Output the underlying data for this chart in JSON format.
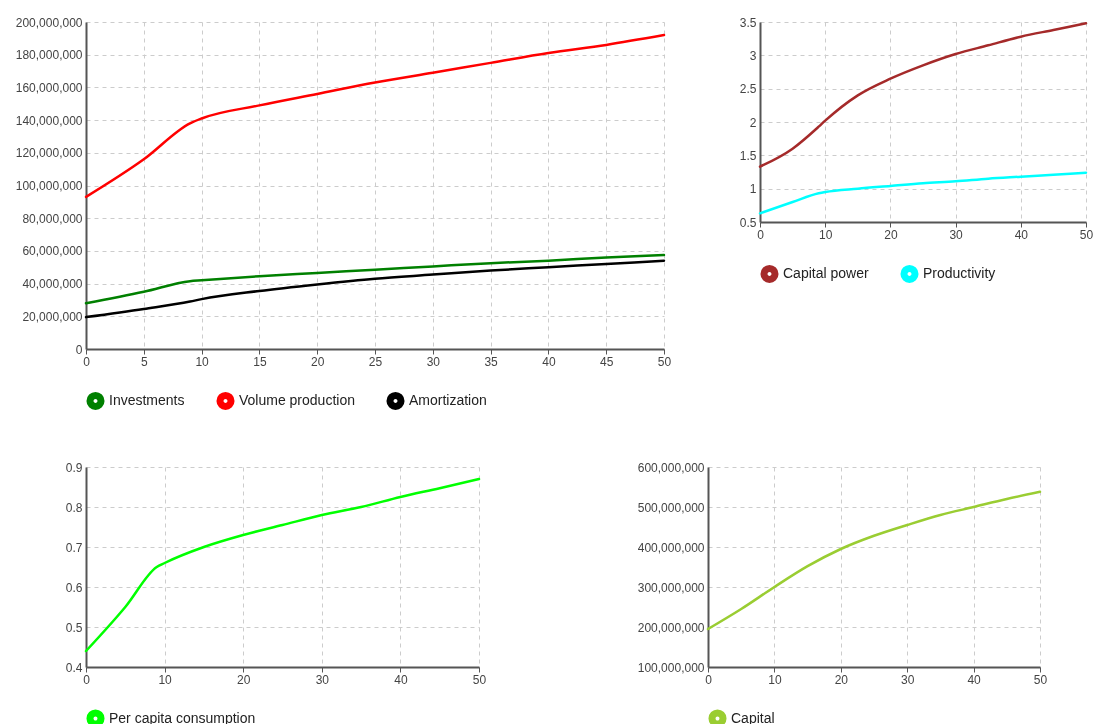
{
  "chart_data": [
    {
      "type": "line",
      "x": [
        0,
        5,
        9,
        10,
        15,
        20,
        25,
        30,
        35,
        40,
        45,
        50
      ],
      "xlim": [
        0,
        50
      ],
      "xticks": [
        0,
        5,
        10,
        15,
        20,
        25,
        30,
        35,
        40,
        45,
        50
      ],
      "ylim": [
        0,
        200000000
      ],
      "yticks": [
        0,
        {
          "value": 20000000,
          "label": "20,000,000"
        },
        {
          "value": 40000000,
          "label": "40,000,000"
        },
        {
          "value": 60000000,
          "label": "60,000,000"
        },
        {
          "value": 80000000,
          "label": "80,000,000"
        },
        {
          "value": 100000000,
          "label": "100,000,000"
        },
        {
          "value": 120000000,
          "label": "120,000,000"
        },
        {
          "value": 140000000,
          "label": "140,000,000"
        },
        {
          "value": 160000000,
          "label": "160,000,000"
        },
        {
          "value": 180000000,
          "label": "180,000,000"
        },
        {
          "value": 200000000,
          "label": "200,000,000"
        }
      ],
      "grid": true,
      "legend": "bottom",
      "marker": "none",
      "series": [
        {
          "name": "Investments",
          "color": "#008000",
          "values": [
            28000000,
            35000000,
            41500000,
            42000000,
            44500000,
            46500000,
            48500000,
            50500000,
            52500000,
            54000000,
            56000000,
            57500000
          ]
        },
        {
          "name": "Volume production",
          "color": "#ff0000",
          "values": [
            93000000,
            116000000,
            138000000,
            141000000,
            149000000,
            156000000,
            163000000,
            169000000,
            175000000,
            181000000,
            186000000,
            192000000
          ]
        },
        {
          "name": "Amortization",
          "color": "#000000",
          "values": [
            19500000,
            24500000,
            29000000,
            30500000,
            35500000,
            39500000,
            43000000,
            45500000,
            48000000,
            50000000,
            52000000,
            54000000
          ]
        }
      ]
    },
    {
      "type": "line",
      "x": [
        0,
        5,
        9,
        10,
        15,
        20,
        25,
        30,
        35,
        40,
        45,
        50
      ],
      "xlim": [
        0,
        50
      ],
      "xticks": [
        0,
        10,
        20,
        30,
        40,
        50
      ],
      "ylim": [
        0.5,
        3.5
      ],
      "yticks": [
        0.5,
        1,
        1.5,
        2,
        2.5,
        3,
        3.5
      ],
      "grid": true,
      "legend": "bottom",
      "marker": "none",
      "series": [
        {
          "name": "Capital power",
          "color": "#a52a2a",
          "values": [
            1.33,
            1.6,
            1.93,
            2.02,
            2.4,
            2.65,
            2.85,
            3.02,
            3.15,
            3.28,
            3.38,
            3.48
          ]
        },
        {
          "name": "Productivity",
          "color": "#00ffff",
          "values": [
            0.63,
            0.8,
            0.93,
            0.95,
            1.0,
            1.04,
            1.08,
            1.11,
            1.15,
            1.18,
            1.21,
            1.24
          ]
        }
      ]
    },
    {
      "type": "line",
      "x": [
        0,
        5,
        9,
        10,
        15,
        20,
        25,
        30,
        35,
        40,
        45,
        50
      ],
      "xlim": [
        0,
        50
      ],
      "xticks": [
        0,
        10,
        20,
        30,
        40,
        50
      ],
      "ylim": [
        0.4,
        0.9
      ],
      "yticks": [
        0.4,
        0.5,
        0.6,
        0.7,
        0.8,
        0.9
      ],
      "grid": true,
      "legend": "bottom",
      "marker": "none",
      "series": [
        {
          "name": "Per capita consumption",
          "color": "#00ff00",
          "values": [
            0.44,
            0.55,
            0.65,
            0.66,
            0.7,
            0.73,
            0.755,
            0.78,
            0.8,
            0.825,
            0.847,
            0.87
          ]
        }
      ]
    },
    {
      "type": "line",
      "x": [
        0,
        5,
        10,
        15,
        20,
        25,
        30,
        35,
        40,
        45,
        50
      ],
      "xlim": [
        0,
        50
      ],
      "xticks": [
        0,
        10,
        20,
        30,
        40,
        50
      ],
      "ylim": [
        100000000,
        600000000
      ],
      "yticks": [
        {
          "value": 100000000,
          "label": "100,000,000"
        },
        {
          "value": 200000000,
          "label": "200,000,000"
        },
        {
          "value": 300000000,
          "label": "300,000,000"
        },
        {
          "value": 400000000,
          "label": "400,000,000"
        },
        {
          "value": 500000000,
          "label": "500,000,000"
        },
        {
          "value": 600000000,
          "label": "600,000,000"
        }
      ],
      "grid": true,
      "legend": "bottom",
      "marker": "none",
      "series": [
        {
          "name": "Capital",
          "color": "#9acd32",
          "values": [
            195000000,
            245000000,
            300000000,
            352000000,
            395000000,
            428000000,
            455000000,
            480000000,
            500000000,
            520000000,
            538000000
          ]
        }
      ]
    }
  ]
}
